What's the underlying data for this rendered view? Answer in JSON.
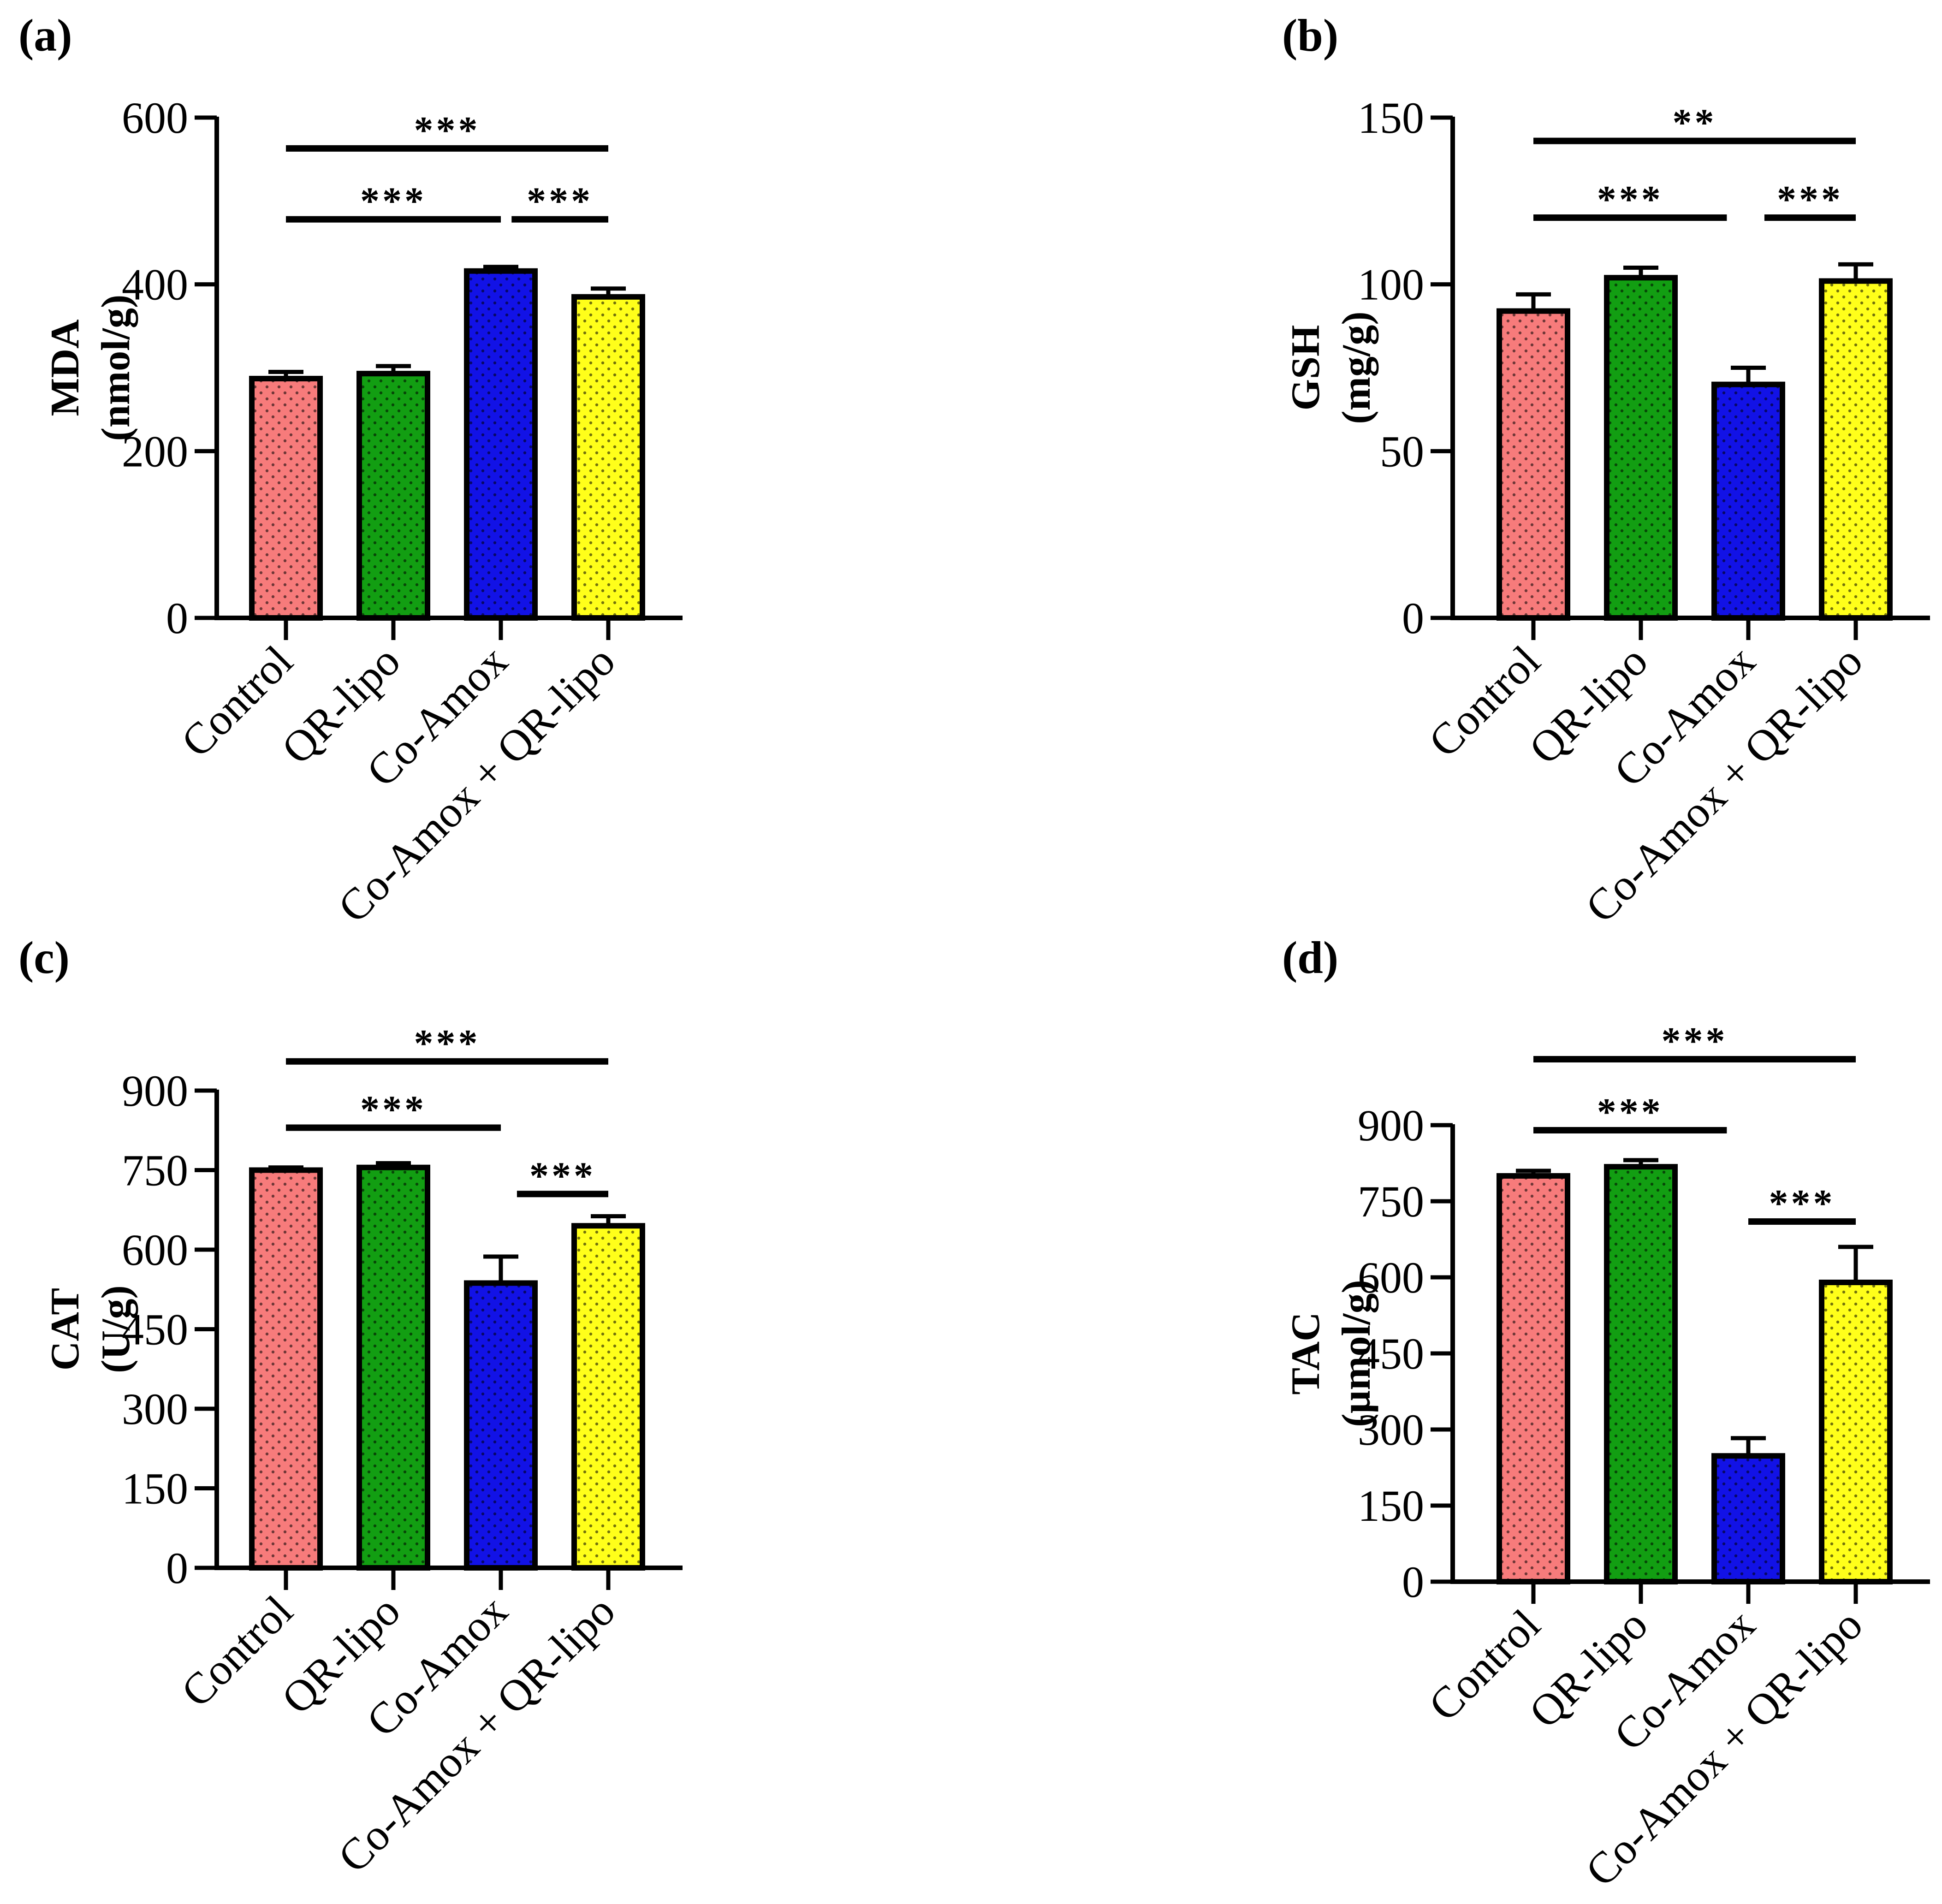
{
  "chart_data": [
    {
      "panel_label": "(a)",
      "type": "bar",
      "ylabel": [
        "MDA",
        "(nmol/g)"
      ],
      "categories": [
        "Control",
        "QR-lipo",
        "Co-Amox",
        "Co-Amox + QR-lipo"
      ],
      "values": [
        287,
        293,
        416,
        385
      ],
      "errors": [
        8,
        9,
        5,
        10
      ],
      "ylim": [
        0,
        600
      ],
      "yticks": [
        0,
        200,
        400,
        600
      ],
      "colors": [
        "#f77b7b",
        "#129e12",
        "#1212e6",
        "#ffff1a"
      ],
      "significance": [
        {
          "from": 0,
          "to": 3,
          "y": 563,
          "label": "***"
        },
        {
          "from": 0,
          "to": 2,
          "y": 478,
          "label": "***"
        },
        {
          "from": 2.1,
          "to": 3,
          "y": 478,
          "label": "***"
        }
      ]
    },
    {
      "panel_label": "(b)",
      "type": "bar",
      "ylabel": [
        "GSH",
        "(mg/g)"
      ],
      "categories": [
        "Control",
        "QR-lipo",
        "Co-Amox",
        "Co-Amox + QR-lipo"
      ],
      "values": [
        92,
        102,
        70,
        101
      ],
      "errors": [
        5,
        3,
        5,
        5
      ],
      "ylim": [
        0,
        150
      ],
      "yticks": [
        0,
        50,
        100,
        150
      ],
      "colors": [
        "#f77b7b",
        "#129e12",
        "#1212e6",
        "#ffff1a"
      ],
      "significance": [
        {
          "from": 0,
          "to": 3,
          "y": 143,
          "label": "**"
        },
        {
          "from": 0,
          "to": 1.8,
          "y": 120,
          "label": "***"
        },
        {
          "from": 2.15,
          "to": 3,
          "y": 120,
          "label": "***"
        }
      ]
    },
    {
      "panel_label": "(c)",
      "type": "bar",
      "ylabel": [
        "CAT",
        "(U/g)"
      ],
      "categories": [
        "Control",
        "QR-lipo",
        "Co-Amox",
        "Co-Amox + QR-lipo"
      ],
      "values": [
        750,
        755,
        537,
        645
      ],
      "errors": [
        5,
        8,
        50,
        18
      ],
      "ylim": [
        0,
        900
      ],
      "yticks": [
        0,
        150,
        300,
        450,
        600,
        750,
        900
      ],
      "colors": [
        "#f77b7b",
        "#129e12",
        "#1212e6",
        "#ffff1a"
      ],
      "significance": [
        {
          "from": 0,
          "to": 3,
          "y": 955,
          "label": "***"
        },
        {
          "from": 0,
          "to": 2,
          "y": 830,
          "label": "***"
        },
        {
          "from": 2.15,
          "to": 3,
          "y": 705,
          "label": "***"
        }
      ]
    },
    {
      "panel_label": "(d)",
      "type": "bar",
      "ylabel": [
        "TAC",
        "(µmol/g)"
      ],
      "categories": [
        "Control",
        "QR-lipo",
        "Co-Amox",
        "Co-Amox + QR-lipo"
      ],
      "values": [
        800,
        818,
        248,
        590
      ],
      "errors": [
        10,
        13,
        35,
        70
      ],
      "ylim": [
        0,
        900
      ],
      "yticks": [
        0,
        150,
        300,
        450,
        600,
        750,
        900
      ],
      "colors": [
        "#f77b7b",
        "#129e12",
        "#1212e6",
        "#ffff1a"
      ],
      "significance": [
        {
          "from": 0,
          "to": 3,
          "y": 1030,
          "label": "***"
        },
        {
          "from": 0,
          "to": 1.8,
          "y": 890,
          "label": "***"
        },
        {
          "from": 2,
          "to": 3,
          "y": 710,
          "label": "***"
        }
      ]
    }
  ]
}
